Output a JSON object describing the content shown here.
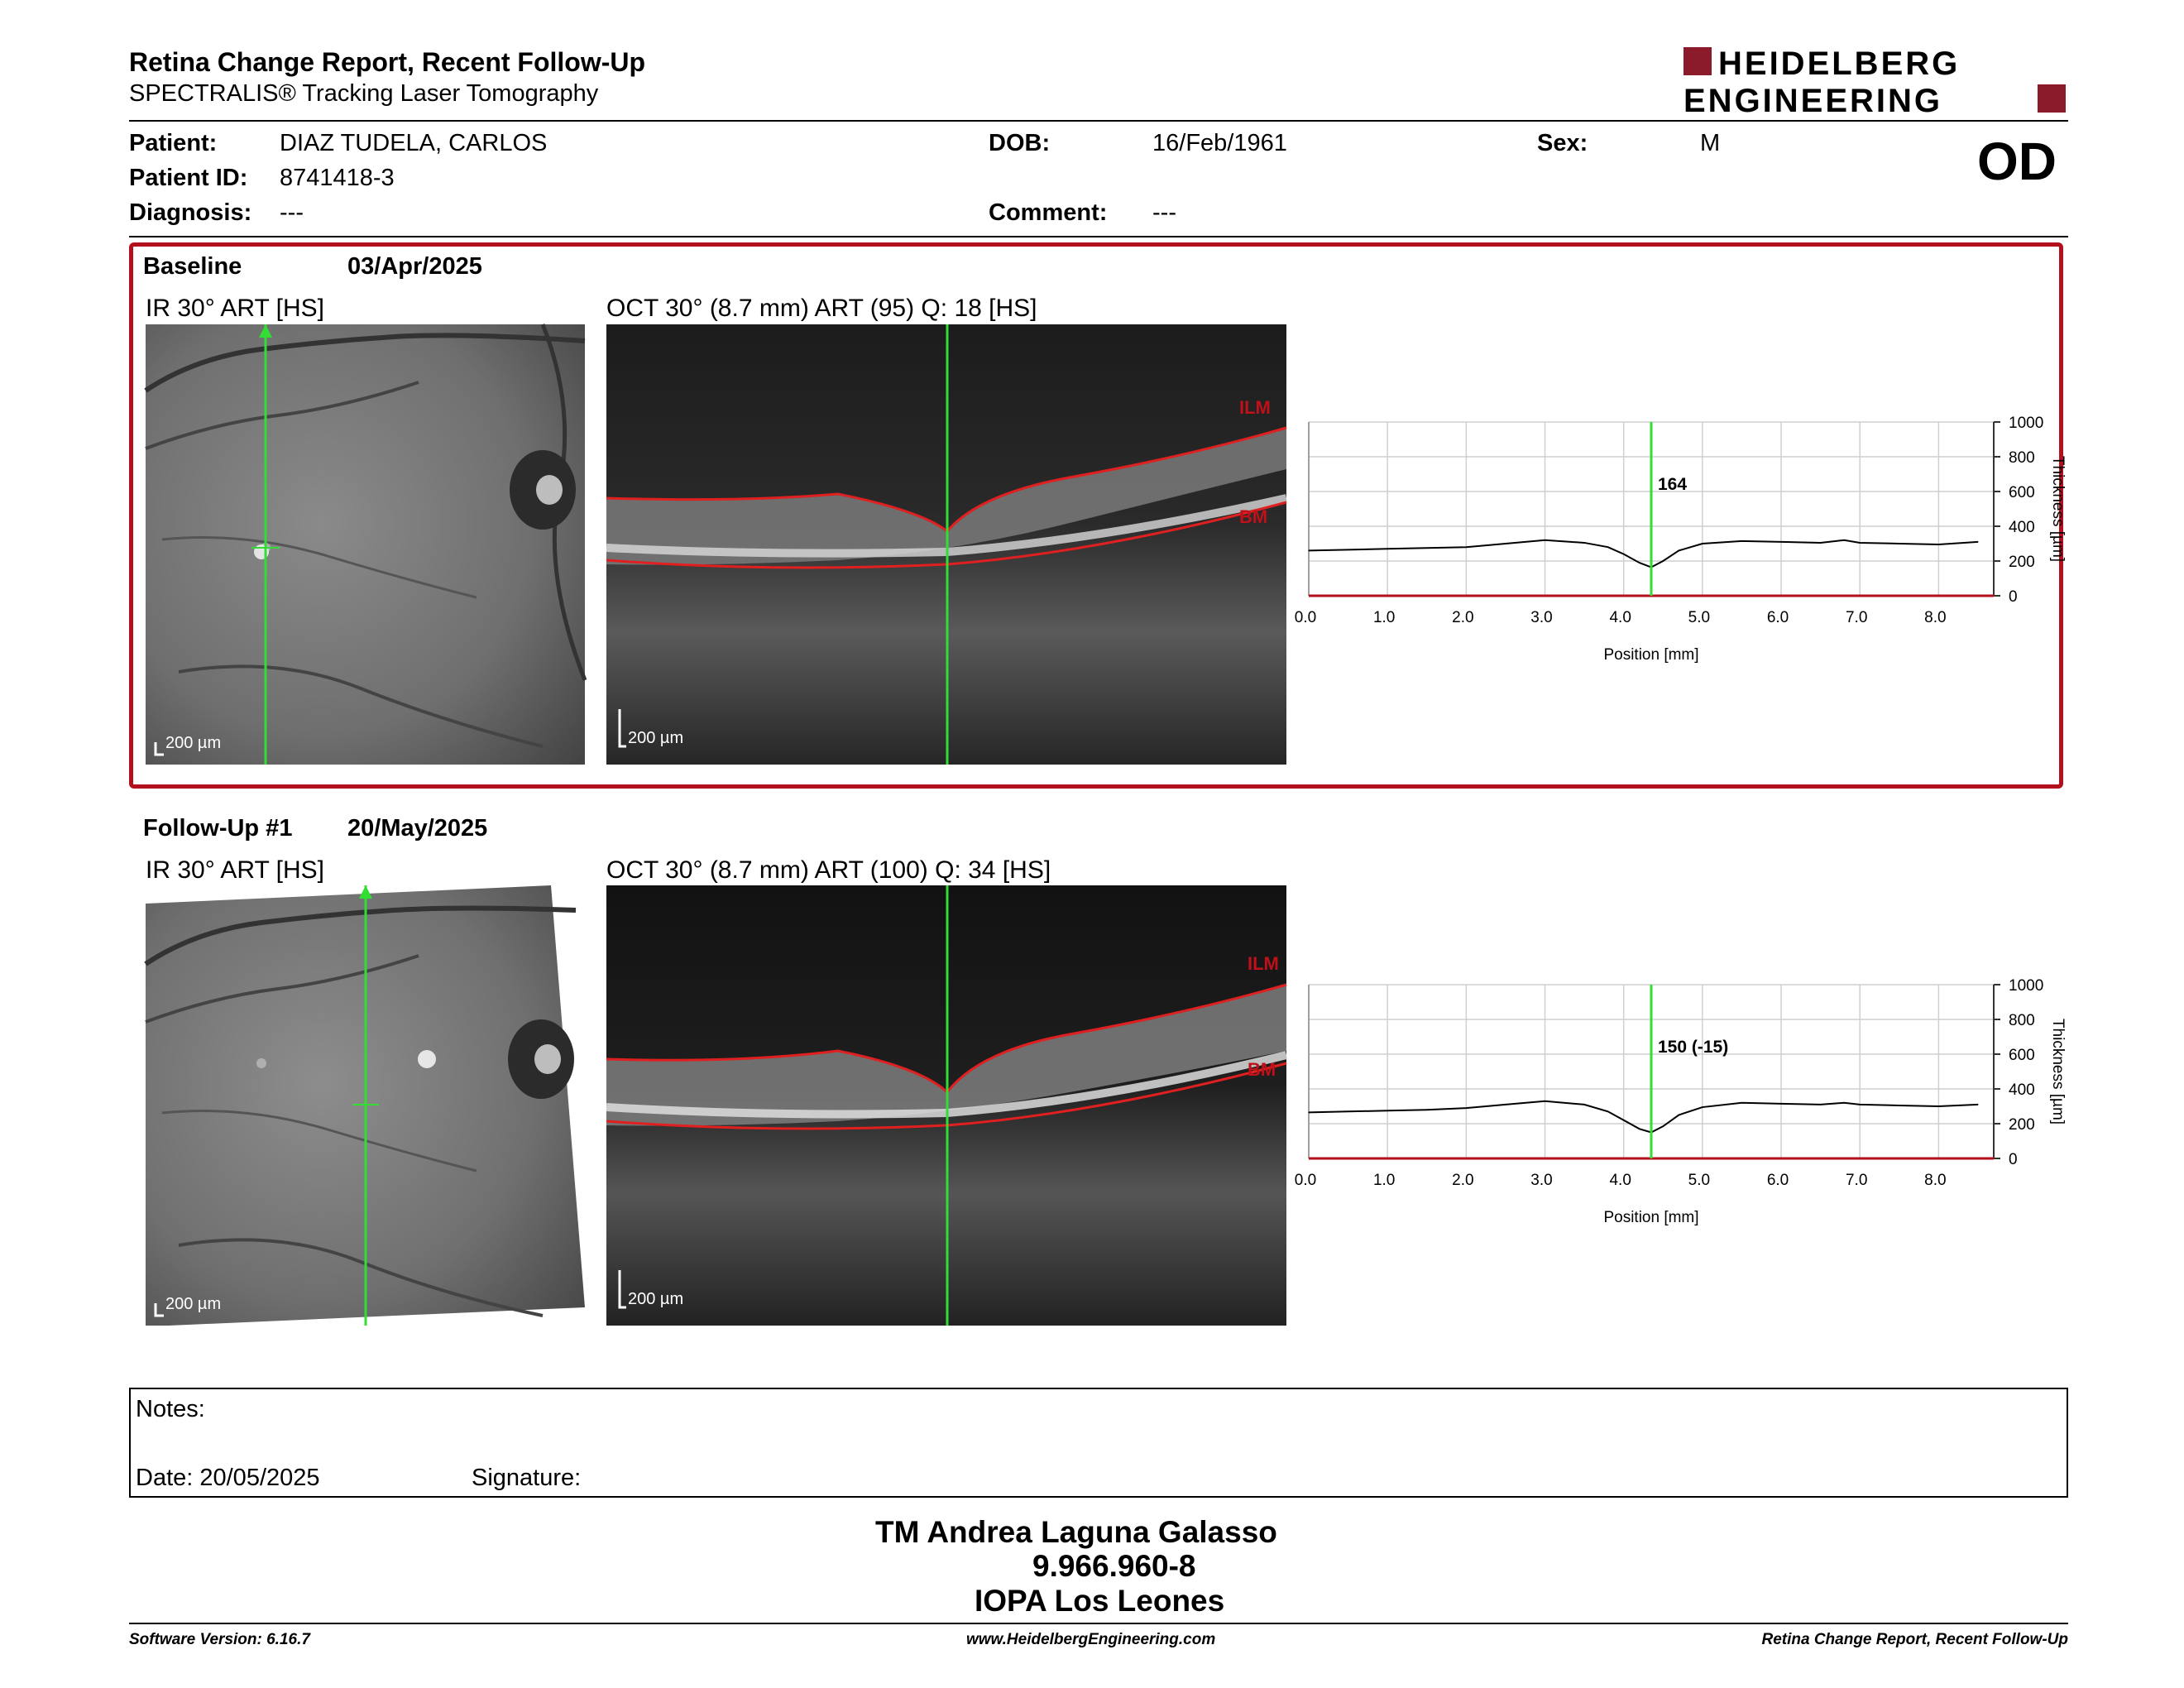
{
  "header": {
    "title": "Retina Change Report, Recent Follow-Up",
    "subtitle": "SPECTRALIS® Tracking Laser Tomography",
    "logo_line1": "HEIDELBERG",
    "logo_line2": "ENGINEERING",
    "brand_color": "#8b1a2b"
  },
  "patient": {
    "patient_label": "Patient:",
    "patient_value": "DIAZ TUDELA, CARLOS",
    "id_label": "Patient ID:",
    "id_value": "8741418-3",
    "diagnosis_label": "Diagnosis:",
    "diagnosis_value": "---",
    "dob_label": "DOB:",
    "dob_value": "16/Feb/1961",
    "comment_label": "Comment:",
    "comment_value": "---",
    "sex_label": "Sex:",
    "sex_value": "M",
    "eye": "OD"
  },
  "baseline": {
    "label": "Baseline",
    "date": "03/Apr/2025",
    "ir_label": "IR 30° ART [HS]",
    "oct_label": "OCT 30° (8.7 mm) ART (95) Q: 18 [HS]",
    "scale_ir": "200 µm",
    "scale_oct": "200 µm",
    "ilm": "ILM",
    "bm": "BM"
  },
  "followup": {
    "label": "Follow-Up #1",
    "date": "20/May/2025",
    "ir_label": "IR 30° ART [HS]",
    "oct_label": "OCT 30° (8.7 mm) ART (100) Q: 34 [HS]",
    "scale_ir": "200 µm",
    "scale_oct": "200 µm",
    "ilm": "ILM",
    "bm": "BM"
  },
  "chart_data": [
    {
      "type": "line",
      "xlabel": "Position [mm]",
      "ylabel": "Thickness [µm]",
      "xlim": [
        0,
        8.7
      ],
      "ylim": [
        0,
        1000
      ],
      "x_ticks": [
        "0.0",
        "1.0",
        "2.0",
        "3.0",
        "4.0",
        "5.0",
        "6.0",
        "7.0",
        "8.0"
      ],
      "y_ticks": [
        "0",
        "200",
        "400",
        "600",
        "800",
        "1000"
      ],
      "marker_x": 4.35,
      "marker_label": "164",
      "grid": true,
      "series": [
        {
          "x": [
            0,
            0.5,
            1.0,
            1.5,
            2.0,
            2.5,
            3.0,
            3.5,
            3.8,
            4.0,
            4.2,
            4.35,
            4.5,
            4.7,
            5.0,
            5.5,
            6.0,
            6.5,
            6.8,
            7.0,
            7.5,
            8.0,
            8.5
          ],
          "values": [
            260,
            265,
            270,
            275,
            280,
            300,
            320,
            305,
            280,
            240,
            190,
            164,
            200,
            260,
            300,
            315,
            310,
            305,
            320,
            305,
            300,
            295,
            310
          ]
        }
      ]
    },
    {
      "type": "line",
      "xlabel": "Position [mm]",
      "ylabel": "Thickness [µm]",
      "xlim": [
        0,
        8.7
      ],
      "ylim": [
        0,
        1000
      ],
      "x_ticks": [
        "0.0",
        "1.0",
        "2.0",
        "3.0",
        "4.0",
        "5.0",
        "6.0",
        "7.0",
        "8.0"
      ],
      "y_ticks": [
        "0",
        "200",
        "400",
        "600",
        "800",
        "1000"
      ],
      "marker_x": 4.35,
      "marker_label": "150 (-15)",
      "grid": true,
      "series": [
        {
          "x": [
            0,
            0.5,
            1.0,
            1.5,
            2.0,
            2.5,
            3.0,
            3.5,
            3.8,
            4.0,
            4.2,
            4.35,
            4.5,
            4.7,
            5.0,
            5.5,
            6.0,
            6.5,
            6.8,
            7.0,
            7.5,
            8.0,
            8.5
          ],
          "values": [
            265,
            270,
            275,
            280,
            290,
            310,
            330,
            310,
            270,
            220,
            170,
            150,
            185,
            250,
            295,
            320,
            315,
            310,
            320,
            310,
            305,
            300,
            310
          ]
        }
      ]
    }
  ],
  "notes": {
    "notes_label": "Notes:",
    "date_label": "Date: 20/05/2025",
    "signature_label": "Signature:"
  },
  "signature": {
    "name": "TM Andrea Laguna Galasso",
    "id": "9.966.960-8",
    "org": "IOPA Los Leones"
  },
  "footer": {
    "left": "Software Version: 6.16.7",
    "center": "www.HeidelbergEngineering.com",
    "right": "Retina Change Report, Recent Follow-Up"
  }
}
